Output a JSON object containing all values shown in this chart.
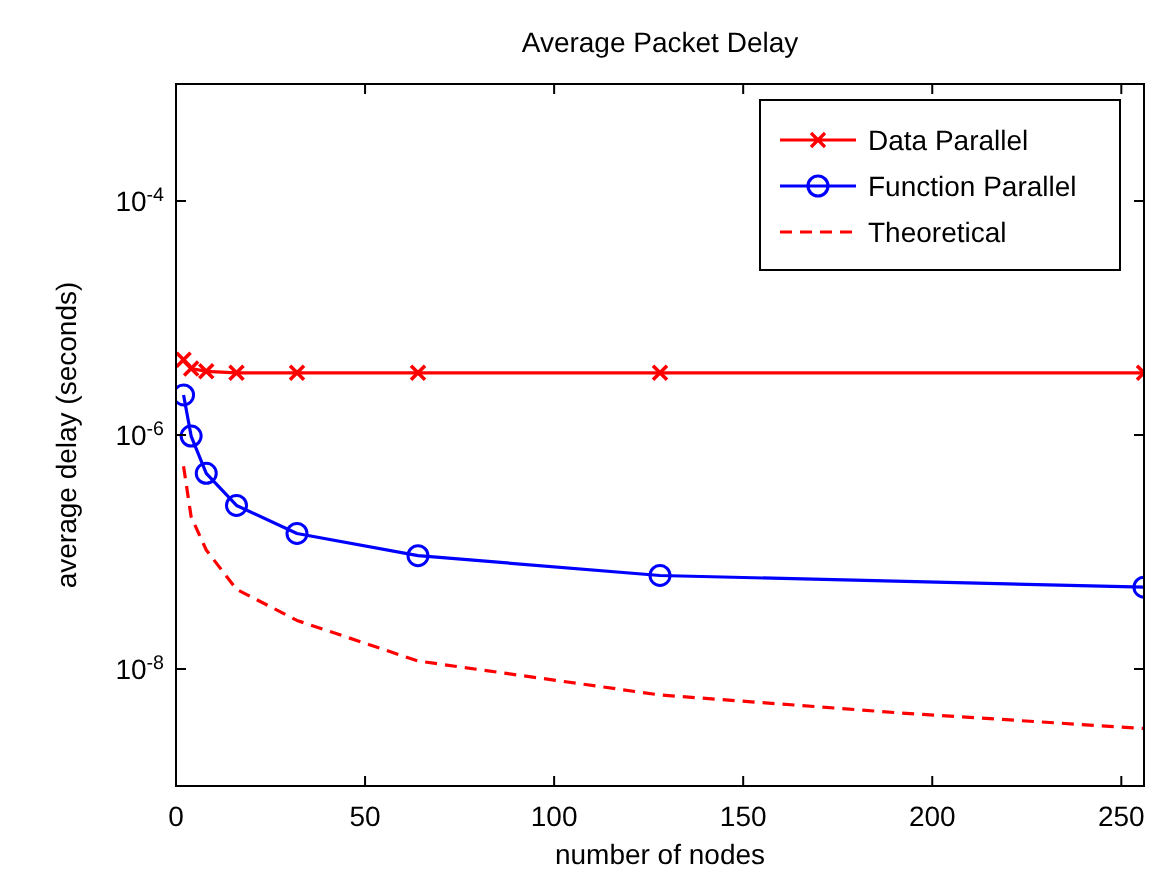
{
  "chart_data": {
    "type": "line",
    "title": "Average Packet Delay",
    "xlabel": "number of nodes",
    "ylabel": "average delay (seconds)",
    "log": "y",
    "grid": false,
    "legend": "top right",
    "xlim": [
      0,
      256
    ],
    "xticks": [
      0,
      50,
      100,
      150,
      200,
      250
    ],
    "ylim": [
      1e-09,
      0.001
    ],
    "yticks": [
      {
        "value": 0.0001,
        "label": "10$^{-4}$"
      },
      {
        "value": 1e-06,
        "label": "10$^{-6}$"
      },
      {
        "value": 1e-08,
        "label": "10$^{-8}$"
      }
    ],
    "series": [
      {
        "name": "Data Parallel",
        "color": "#ff0000",
        "marker": "cross",
        "line_style": "solid",
        "x": [
          2,
          4,
          8,
          16,
          32,
          64,
          128,
          256
        ],
        "values": [
          4.4e-06,
          3.7e-06,
          3.5e-06,
          3.4e-06,
          3.4e-06,
          3.4e-06,
          3.4e-06,
          3.4e-06
        ]
      },
      {
        "name": "Function Parallel",
        "color": "#0000ff",
        "marker": "circle",
        "line_style": "solid",
        "x": [
          2,
          4,
          8,
          16,
          32,
          64,
          128,
          256
        ],
        "values": [
          2.2e-06,
          9.8e-07,
          4.7e-07,
          2.5e-07,
          1.44e-07,
          9.3e-08,
          6.3e-08,
          5e-08
        ]
      },
      {
        "name": "Theoretical",
        "color": "#ff0000",
        "marker": "none",
        "line_style": "dashed",
        "x": [
          2,
          4,
          8,
          16,
          32,
          64,
          128,
          192,
          256
        ],
        "values": [
          5.4e-07,
          2e-07,
          1.04e-07,
          4.8e-08,
          2.6e-08,
          1.17e-08,
          6e-09,
          4.2e-09,
          3.1e-09
        ]
      }
    ]
  }
}
